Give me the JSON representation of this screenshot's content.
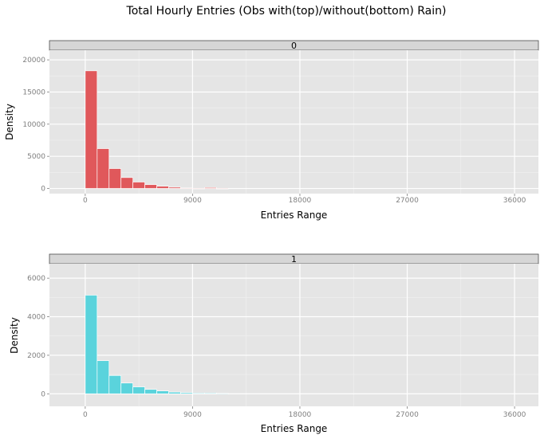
{
  "chart_data": {
    "type": "bar",
    "title": "Total Hourly Entries (Obs with(top)/without(bottom) Rain)",
    "xlabel": "Entries Range",
    "ylabel": "Density",
    "bin_width": 1000,
    "x_ticks": [
      0,
      9000,
      18000,
      27000,
      36000
    ],
    "grid": true,
    "panels": [
      {
        "strip": "0",
        "color": "#e0585b",
        "ylim": [
          -800,
          21500
        ],
        "y_ticks": [
          0,
          5000,
          10000,
          15000,
          20000
        ],
        "bins_start": [
          0,
          1000,
          2000,
          3000,
          4000,
          5000,
          6000,
          7000,
          8000,
          9000,
          10000,
          11000
        ],
        "values": [
          18300,
          6200,
          3100,
          1700,
          1000,
          600,
          350,
          200,
          80,
          30,
          150,
          20
        ]
      },
      {
        "strip": "1",
        "color": "#5ad3dc",
        "ylim": [
          -650,
          6750
        ],
        "y_ticks": [
          0,
          2000,
          4000,
          6000
        ],
        "bins_start": [
          0,
          1000,
          2000,
          3000,
          4000,
          5000,
          6000,
          7000,
          8000,
          9000,
          10000,
          11000
        ],
        "values": [
          5120,
          1720,
          950,
          560,
          360,
          230,
          150,
          90,
          60,
          40,
          40,
          20
        ]
      }
    ]
  }
}
